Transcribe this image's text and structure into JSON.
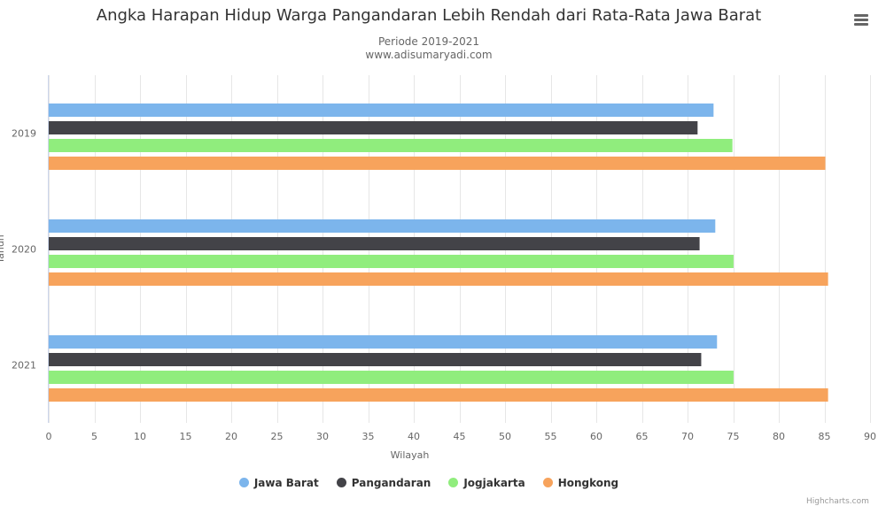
{
  "chart_data": {
    "type": "bar",
    "orientation": "horizontal",
    "title": "Angka Harapan Hidup Warga Pangandaran Lebih Rendah dari Rata-Rata Jawa Barat",
    "subtitle": [
      "Periode 2019-2021",
      "www.adisumaryadi.com"
    ],
    "categories": [
      "2019",
      "2020",
      "2021"
    ],
    "xlabel": "Wilayah",
    "ylabel": "Tahun",
    "xlim": [
      0,
      90
    ],
    "xticks": [
      0,
      5,
      10,
      15,
      20,
      25,
      30,
      35,
      40,
      45,
      50,
      55,
      60,
      65,
      70,
      75,
      80,
      85,
      90
    ],
    "grid": true,
    "legend_position": "bottom",
    "series": [
      {
        "name": "Jawa Barat",
        "color": "#7cb5ec",
        "values": [
          72.85,
          73.04,
          73.23
        ]
      },
      {
        "name": "Pangandaran",
        "color": "#434348",
        "values": [
          71.1,
          71.32,
          71.5
        ]
      },
      {
        "name": "Jogjakarta",
        "color": "#90ed7d",
        "values": [
          74.92,
          75.04,
          75.04
        ]
      },
      {
        "name": "Hongkong",
        "color": "#f7a35c",
        "values": [
          85.1,
          85.4,
          85.4
        ]
      }
    ]
  },
  "credits": "Highcharts.com",
  "icons": {
    "menu": "hamburger-menu-icon"
  }
}
